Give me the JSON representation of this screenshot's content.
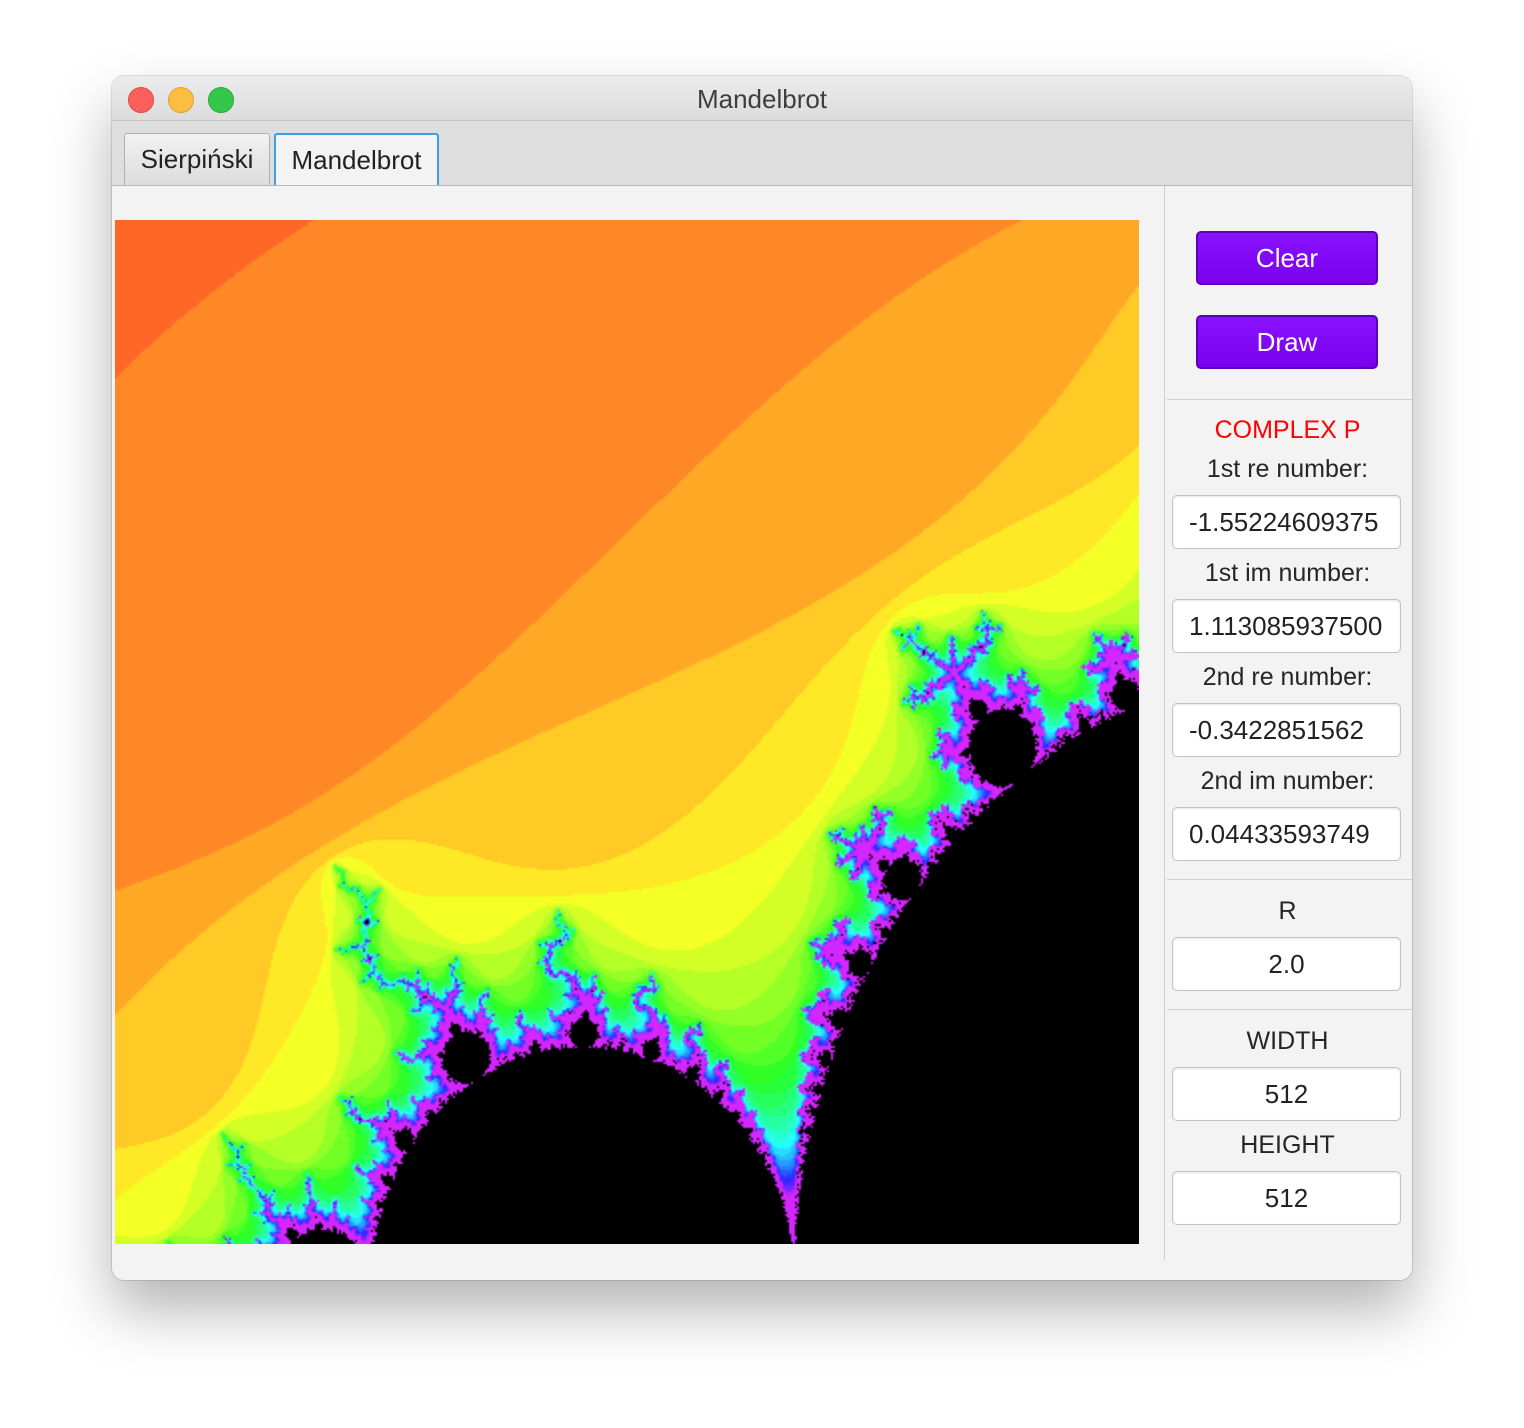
{
  "window": {
    "title": "Mandelbrot"
  },
  "tabs": [
    {
      "label": "Sierpiński",
      "selected": false
    },
    {
      "label": "Mandelbrot",
      "selected": true
    }
  ],
  "panel": {
    "clear_label": "Clear",
    "draw_label": "Draw",
    "complex_header": "COMPLEX P",
    "first_re_label": "1st re number:",
    "first_re_value": "-1.55224609375",
    "first_im_label": "1st im number:",
    "first_im_value": "1.113085937500",
    "second_re_label": "2nd re number:",
    "second_re_value": "-0.3422851562",
    "second_im_label": "2nd im number:",
    "second_im_value": "0.04433593749",
    "r_label": "R",
    "r_value": "2.0",
    "width_label": "WIDTH",
    "width_value": "512",
    "height_label": "HEIGHT",
    "height_value": "512"
  },
  "colors": {
    "button_accent": "#7f00ff",
    "complex_header": "#ff0000",
    "tab_focus": "#3c9fe0"
  }
}
